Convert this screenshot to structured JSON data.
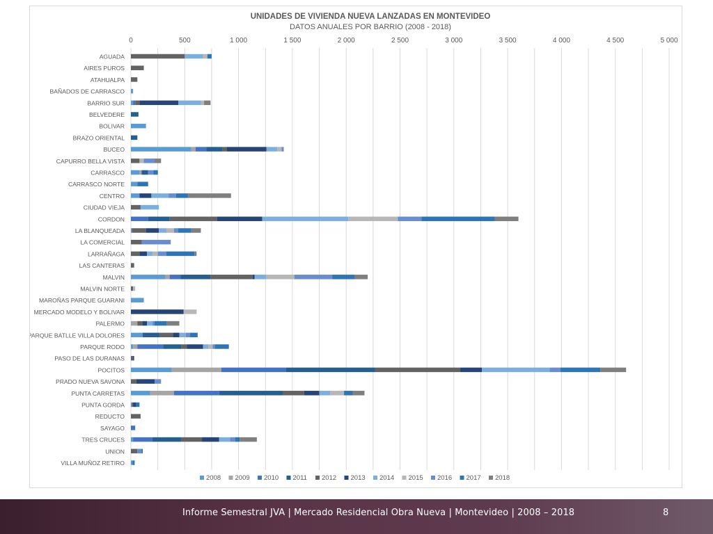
{
  "chart_data": {
    "type": "bar",
    "orientation": "horizontal",
    "stacked": true,
    "title": "UNIDADES DE VIVIENDA NUEVA LANZADAS EN MONTEVIDEO",
    "subtitle": "DATOS ANUALES POR BARRIO (2008 - 2018)",
    "xlim": [
      0,
      5000
    ],
    "x_ticks": [
      0,
      250,
      500,
      750,
      1000,
      1250,
      1500,
      1750,
      2000,
      2250,
      2500,
      2750,
      3000,
      3250,
      3500,
      3750,
      4000,
      4250,
      4500,
      4750,
      5000
    ],
    "x_tick_labels": [
      "0",
      "",
      "500",
      "",
      "1 000",
      "",
      "1 500",
      "",
      "2 000",
      "",
      "2 500",
      "",
      "3 000",
      "",
      "3 500",
      "",
      "4 000",
      "",
      "4 500",
      "",
      "5 000"
    ],
    "grid": "vertical",
    "legend_position": "bottom",
    "categories": [
      "AGUADA",
      "AIRES PUROS",
      "ATAHUALPA",
      "BAÑADOS DE CARRASCO",
      "BARRIO SUR",
      "BELVEDERE",
      "BOLIVAR",
      "BRAZO ORIENTAL",
      "BUCEO",
      "CAPURRO BELLA VISTA",
      "CARRASCO",
      "CARRASCO NORTE",
      "CENTRO",
      "CIUDAD VIEJA",
      "CORDON",
      "LA BLANQUEADA",
      "LA COMERCIAL",
      "LARRAÑAGA",
      "LAS CANTERAS",
      "MALVIN",
      "MALVIN NORTE",
      "MAROÑAS PARQUE GUARANI",
      "MERCADO MODELO Y BOLIVAR",
      "PALERMO",
      "PARQUE BATLLE VILLA DOLORES",
      "PARQUE RODO",
      "PASO DE LAS DURANAS",
      "POCITOS",
      "PRADO NUEVA SAVONA",
      "PUNTA CARRETAS",
      "PUNTA GORDA",
      "REDUCTO",
      "SAYAGO",
      "TRES CRUCES",
      "UNION",
      "VILLA MUÑOZ RETIRO"
    ],
    "series": [
      {
        "name": "2008",
        "color": "#5b9bd5",
        "values": [
          0,
          0,
          0,
          20,
          20,
          0,
          140,
          0,
          560,
          0,
          80,
          60,
          80,
          0,
          0,
          10,
          0,
          0,
          0,
          320,
          0,
          120,
          0,
          0,
          110,
          20,
          0,
          380,
          0,
          180,
          10,
          0,
          0,
          20,
          0,
          15
        ]
      },
      {
        "name": "2009",
        "color": "#a5a5a5",
        "values": [
          0,
          0,
          0,
          0,
          0,
          0,
          0,
          0,
          40,
          0,
          20,
          0,
          0,
          0,
          0,
          0,
          0,
          0,
          0,
          40,
          0,
          0,
          0,
          60,
          0,
          40,
          0,
          460,
          0,
          220,
          0,
          0,
          0,
          0,
          0,
          0
        ]
      },
      {
        "name": "2010",
        "color": "#4472c4",
        "values": [
          0,
          0,
          0,
          0,
          20,
          0,
          0,
          0,
          100,
          0,
          0,
          0,
          0,
          0,
          160,
          0,
          0,
          0,
          0,
          100,
          0,
          0,
          0,
          0,
          0,
          240,
          0,
          600,
          0,
          420,
          0,
          0,
          40,
          180,
          0,
          0
        ]
      },
      {
        "name": "2011",
        "color": "#255e91",
        "values": [
          0,
          0,
          0,
          0,
          0,
          70,
          0,
          60,
          150,
          0,
          60,
          0,
          0,
          0,
          200,
          0,
          0,
          0,
          0,
          280,
          0,
          0,
          0,
          0,
          160,
          170,
          0,
          830,
          0,
          590,
          0,
          0,
          0,
          270,
          0,
          0
        ]
      },
      {
        "name": "2012",
        "color": "#636363",
        "values": [
          500,
          120,
          60,
          0,
          40,
          0,
          0,
          0,
          40,
          80,
          0,
          0,
          0,
          90,
          440,
          130,
          100,
          80,
          30,
          390,
          20,
          0,
          0,
          50,
          120,
          50,
          20,
          790,
          50,
          200,
          10,
          90,
          0,
          190,
          60,
          0
        ]
      },
      {
        "name": "2013",
        "color": "#264478",
        "values": [
          0,
          0,
          0,
          0,
          360,
          0,
          0,
          0,
          370,
          0,
          0,
          0,
          110,
          0,
          420,
          120,
          0,
          70,
          0,
          20,
          0,
          0,
          490,
          40,
          60,
          150,
          10,
          200,
          170,
          140,
          30,
          0,
          0,
          160,
          0,
          0
        ]
      },
      {
        "name": "2014",
        "color": "#7cafdd",
        "values": [
          170,
          0,
          0,
          0,
          210,
          0,
          0,
          0,
          100,
          0,
          0,
          0,
          160,
          170,
          800,
          70,
          0,
          50,
          0,
          110,
          0,
          0,
          0,
          50,
          60,
          50,
          0,
          630,
          0,
          100,
          0,
          0,
          0,
          100,
          0,
          0
        ]
      },
      {
        "name": "2015",
        "color": "#b7b7b7",
        "values": [
          40,
          0,
          0,
          0,
          30,
          0,
          0,
          0,
          40,
          40,
          0,
          0,
          0,
          0,
          460,
          70,
          0,
          50,
          0,
          260,
          20,
          0,
          120,
          0,
          0,
          40,
          0,
          0,
          0,
          130,
          0,
          0,
          0,
          0,
          0,
          0
        ]
      },
      {
        "name": "2016",
        "color": "#698ed0",
        "values": [
          0,
          0,
          0,
          0,
          0,
          0,
          0,
          0,
          20,
          100,
          50,
          0,
          70,
          0,
          220,
          40,
          270,
          80,
          0,
          350,
          0,
          0,
          0,
          20,
          40,
          20,
          0,
          100,
          60,
          0,
          0,
          0,
          0,
          50,
          40,
          0
        ]
      },
      {
        "name": "2017",
        "color": "#2e75b6",
        "values": [
          40,
          0,
          0,
          0,
          0,
          0,
          0,
          0,
          0,
          0,
          40,
          100,
          110,
          0,
          680,
          120,
          0,
          260,
          0,
          210,
          0,
          0,
          0,
          110,
          70,
          130,
          0,
          370,
          0,
          80,
          30,
          0,
          0,
          40,
          10,
          20
        ]
      },
      {
        "name": "2018",
        "color": "#7f7f7f",
        "values": [
          0,
          0,
          0,
          0,
          60,
          0,
          0,
          0,
          0,
          60,
          0,
          0,
          400,
          0,
          220,
          90,
          0,
          20,
          0,
          120,
          0,
          0,
          0,
          120,
          0,
          0,
          0,
          240,
          0,
          110,
          0,
          0,
          0,
          160,
          0,
          0
        ]
      }
    ]
  },
  "footer": {
    "text": "Informe Semestral JVA | Mercado Residencial Obra Nueva | Montevideo | 2008 – 2018",
    "page_number": "8"
  }
}
